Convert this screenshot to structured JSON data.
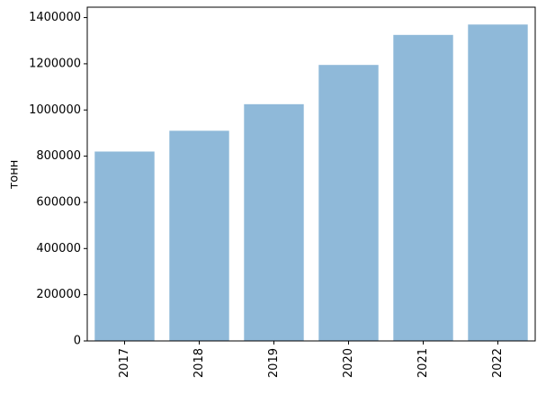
{
  "chart_data": {
    "type": "bar",
    "ylabel": "тонн",
    "categories": [
      "2017",
      "2018",
      "2019",
      "2020",
      "2021",
      "2022"
    ],
    "values": [
      820000,
      910000,
      1025000,
      1195000,
      1325000,
      1370000
    ],
    "color": "#8fb9d9",
    "ylim": [
      0,
      1445000
    ],
    "yticks": [
      0,
      200000,
      400000,
      600000,
      800000,
      1000000,
      1200000,
      1400000
    ],
    "grid": false
  }
}
